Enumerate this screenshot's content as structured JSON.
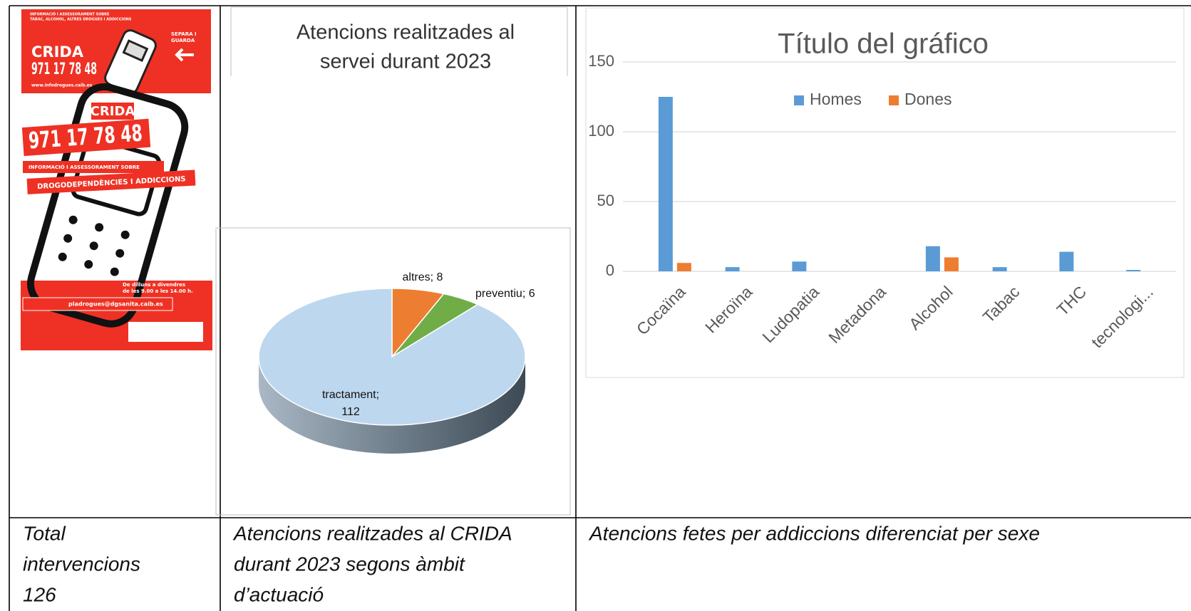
{
  "poster": {
    "header": [
      "INFORMACIÓ I ASSESSORAMENT SOBRE",
      "TABAC, ALCOHOL, ALTRES DROGUES I ADDICCIONS"
    ],
    "fold": [
      "SEPARA I",
      "GUARDA"
    ],
    "brand_small": "CRIDA",
    "phone_small": "971 17 78 48",
    "web": "www.infodrogues.caib.es",
    "brand": "CRIDA",
    "phone": "971 17 78 48",
    "info": "INFORMACIÓ I ASSESSORAMENT SOBRE",
    "topic": "DROGODEPENDÈNCIES I ADDICCIONS",
    "hours": [
      "De dilluns a divendres",
      "de les 9.00 a les 14.00 h."
    ],
    "email": "pladrogues@dgsanita.caib.es"
  },
  "chart_data": [
    {
      "type": "pie",
      "title": [
        "Atencions realitzades al",
        "servei durant 2023"
      ],
      "values": [
        8,
        6,
        112
      ],
      "value_labels": [
        "altres; 8",
        "preventiu; 6",
        "tractament; 112"
      ],
      "colors": [
        "#ed7d31",
        "#70ad47",
        "#bdd7ee"
      ]
    },
    {
      "type": "bar",
      "title": "Título del gráfico",
      "categories": [
        "Cocaïna",
        "Heroïna",
        "Ludopatia",
        "Metadona",
        "Alcohol",
        "Tabac",
        "THC",
        "tecnologi..."
      ],
      "series": [
        {
          "name": "Homes",
          "color": "#5b9bd5",
          "values": [
            125,
            3,
            7,
            0,
            18,
            3,
            14,
            1
          ]
        },
        {
          "name": "Dones",
          "color": "#ed7d31",
          "values": [
            6,
            0,
            0,
            0,
            10,
            0,
            0,
            0
          ]
        }
      ],
      "ylim": [
        0,
        150
      ],
      "yticks": [
        0,
        50,
        100,
        150
      ],
      "grid": true,
      "legend": "top"
    }
  ],
  "captions": [
    [
      "Total",
      "intervencions",
      "126"
    ],
    [
      "Atencions realitzades al CRIDA",
      "durant 2023 segons àmbit",
      "d’actuació"
    ],
    [
      "Atencions fetes per addiccions diferenciat per sexe"
    ]
  ]
}
